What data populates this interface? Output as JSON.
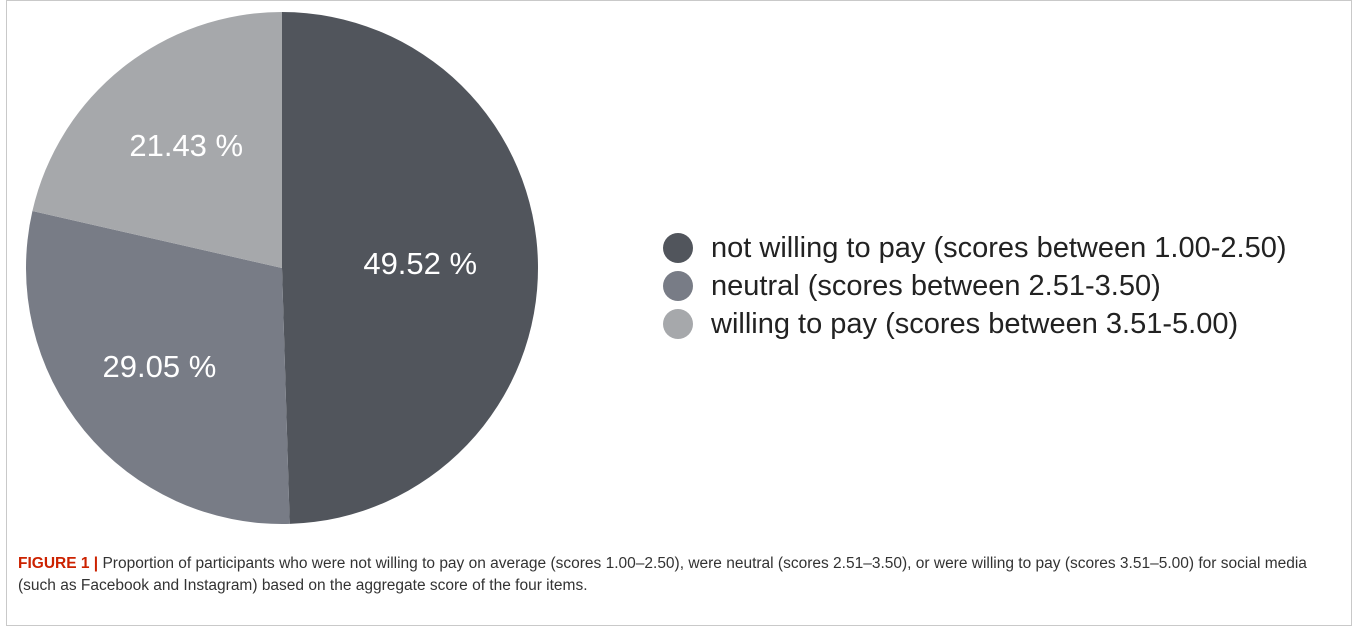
{
  "chart_data": {
    "type": "pie",
    "slices": [
      {
        "label": "not willing to pay (scores between 1.00-2.50)",
        "value": 49.52,
        "display": "49.52 %",
        "color": "#51555c"
      },
      {
        "label": "neutral (scores between 2.51-3.50)",
        "value": 29.05,
        "display": "29.05 %",
        "color": "#787c86"
      },
      {
        "label": "willing to pay (scores between 3.51-5.00)",
        "value": 21.43,
        "display": "21.43 %",
        "color": "#a6a8ab"
      }
    ],
    "start_angle_deg": 0,
    "direction": "clockwise",
    "legend_position": "right"
  },
  "caption": {
    "label": "FIGURE 1 |",
    "text": " Proportion of participants who were not willing to pay on average (scores 1.00–2.50), were neutral (scores 2.51–3.50), or were willing to pay (scores 3.51–5.00) for social media (such as Facebook and Instagram) based on the aggregate score of the four items."
  }
}
